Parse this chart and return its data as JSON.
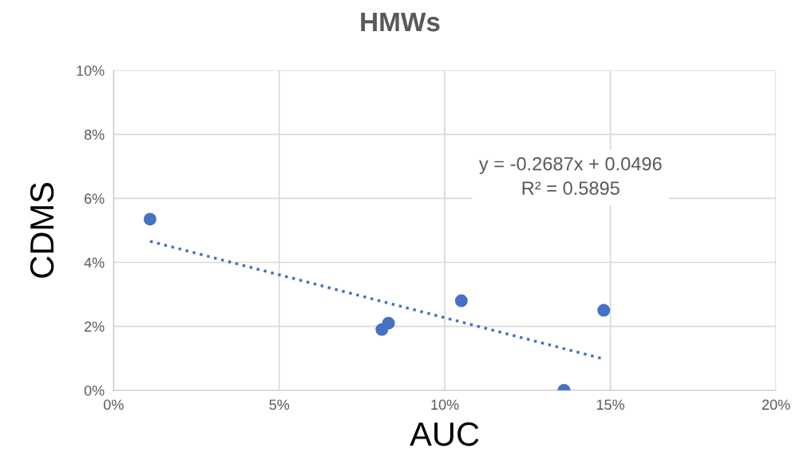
{
  "chart_data": {
    "type": "scatter",
    "title": "HMWs",
    "xlabel": "AUC",
    "ylabel": "CDMS",
    "series": [
      {
        "color": "#4472c4",
        "marker": "circle",
        "x": [
          1.1,
          8.1,
          8.3,
          10.5,
          13.6,
          14.8
        ],
        "values": [
          5.35,
          1.9,
          2.1,
          2.8,
          0.0,
          2.5
        ]
      },
      {
        "type": "line",
        "color": "#4472c4",
        "line_style": "dotted",
        "marker": "none",
        "x": [
          1.1,
          14.8
        ],
        "values": [
          4.66,
          0.98
        ]
      }
    ],
    "xlim": [
      0,
      20
    ],
    "ylim": [
      0,
      10
    ],
    "xticks": [
      {
        "value": 0,
        "label": "0%"
      },
      {
        "value": 5,
        "label": "5%"
      },
      {
        "value": 10,
        "label": "10%"
      },
      {
        "value": 15,
        "label": "15%"
      },
      {
        "value": 20,
        "label": "20%"
      }
    ],
    "yticks": [
      {
        "value": 0,
        "label": "0%"
      },
      {
        "value": 2,
        "label": "2%"
      },
      {
        "value": 4,
        "label": "4%"
      },
      {
        "value": 6,
        "label": "6%"
      },
      {
        "value": 8,
        "label": "8%"
      },
      {
        "value": 10,
        "label": "10%"
      }
    ],
    "grid": true,
    "annotations": [
      "y = -0.2687x + 0.0496\nR² = 0.5895"
    ]
  }
}
